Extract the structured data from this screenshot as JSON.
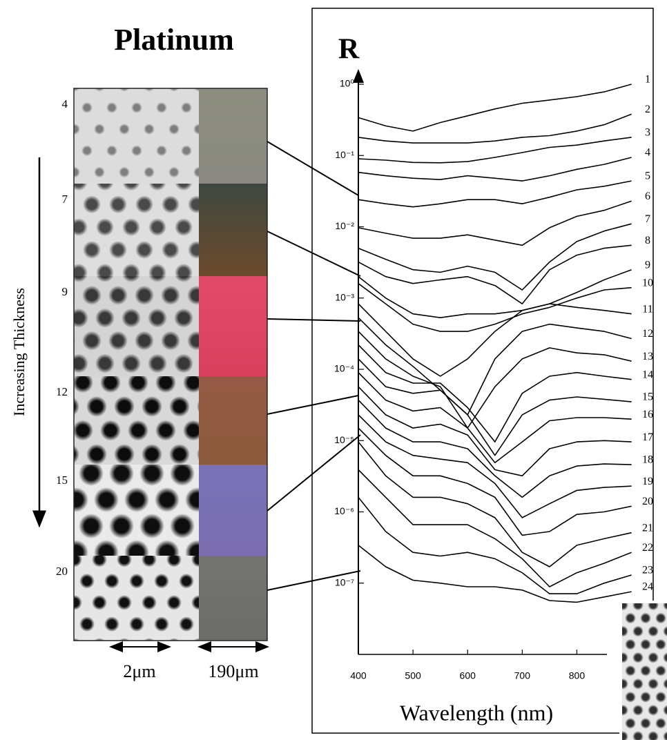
{
  "figure": {
    "title": "Platinum",
    "thickness_label": "Increasing Thickness",
    "samples": [
      "4",
      "7",
      "9",
      "12",
      "15",
      "20"
    ],
    "scale_labels": [
      "2μm",
      "190μm"
    ]
  },
  "chart_data": {
    "type": "line",
    "ylabel": "R",
    "xlabel": "Wavelength (nm)",
    "color": "#000000",
    "yscale": "log",
    "x": [
      400,
      450,
      500,
      550,
      600,
      650,
      700,
      750,
      800,
      850,
      900
    ],
    "xlim": [
      400,
      850
    ],
    "xticks": [
      400,
      500,
      600,
      700,
      800
    ],
    "ylim": [
      1e-08,
      1
    ],
    "yticks": [
      {
        "value": 1,
        "label": "10⁰"
      },
      {
        "value": 0.1,
        "label": "10⁻¹"
      },
      {
        "value": 0.01,
        "label": "10⁻²"
      },
      {
        "value": 0.001,
        "label": "10⁻³"
      },
      {
        "value": 0.0001,
        "label": "10⁻⁴"
      },
      {
        "value": 1e-05,
        "label": "10⁻⁵"
      },
      {
        "value": 1e-06,
        "label": "10⁻⁶"
      },
      {
        "value": 1e-07,
        "label": "10⁻⁷"
      }
    ],
    "series": [
      {
        "name": "1",
        "values": [
          0.34,
          0.26,
          0.22,
          0.29,
          0.36,
          0.45,
          0.54,
          0.6,
          0.67,
          0.78,
          1
        ]
      },
      {
        "name": "2",
        "values": [
          0.18,
          0.16,
          0.15,
          0.15,
          0.15,
          0.16,
          0.18,
          0.19,
          0.22,
          0.27,
          0.38
        ]
      },
      {
        "name": "3",
        "values": [
          0.09,
          0.086,
          0.08,
          0.079,
          0.082,
          0.094,
          0.11,
          0.13,
          0.14,
          0.16,
          0.18
        ]
      },
      {
        "name": "4",
        "values": [
          0.058,
          0.052,
          0.048,
          0.046,
          0.052,
          0.048,
          0.044,
          0.052,
          0.064,
          0.075,
          0.094
        ]
      },
      {
        "name": "5",
        "values": [
          0.024,
          0.021,
          0.019,
          0.021,
          0.024,
          0.024,
          0.021,
          0.026,
          0.033,
          0.037,
          0.044
        ]
      },
      {
        "name": "6",
        "values": [
          0.0097,
          0.0081,
          0.0069,
          0.0069,
          0.0077,
          0.0065,
          0.0055,
          0.0097,
          0.014,
          0.017,
          0.023
        ]
      },
      {
        "name": "7",
        "values": [
          0.005,
          0.0035,
          0.0025,
          0.0023,
          0.0028,
          0.0023,
          0.0013,
          0.0032,
          0.0062,
          0.0087,
          0.011
        ]
      },
      {
        "name": "8",
        "values": [
          0.0032,
          0.002,
          0.0016,
          0.0018,
          0.002,
          0.0015,
          0.00083,
          0.0025,
          0.004,
          0.005,
          0.0055
        ]
      },
      {
        "name": "9",
        "values": [
          0.002,
          0.001,
          0.0006,
          0.00053,
          0.0006,
          0.0006,
          0.00067,
          0.00083,
          0.0012,
          0.0018,
          0.0025
        ]
      },
      {
        "name": "10",
        "values": [
          0.0016,
          0.00083,
          0.00043,
          0.00034,
          0.00034,
          0.00043,
          0.0006,
          0.00074,
          0.001,
          0.0013,
          0.0014
        ]
      },
      {
        "name": "11",
        "values": [
          0.00083,
          0.00034,
          0.00014,
          8e-05,
          0.00014,
          0.00034,
          0.00067,
          0.00083,
          0.00074,
          0.00067,
          0.0006
        ]
      },
      {
        "name": "12",
        "values": [
          0.00053,
          0.00022,
          0.00011,
          5.1e-05,
          2.3e-05,
          0.00014,
          0.00034,
          0.00043,
          0.00038,
          0.00034,
          0.00027
        ]
      },
      {
        "name": "13",
        "values": [
          0.00034,
          0.00014,
          8e-05,
          5.7e-05,
          1.5e-05,
          5.7e-05,
          0.00014,
          0.0002,
          0.00017,
          0.00016,
          0.00013
        ]
      },
      {
        "name": "14",
        "values": [
          0.00022,
          9e-05,
          6.4e-05,
          6.4e-05,
          2.9e-05,
          9.6e-06,
          4.6e-05,
          8e-05,
          9e-05,
          8e-05,
          7.2e-05
        ]
      },
      {
        "name": "15",
        "values": [
          0.00014,
          5.7e-05,
          4.6e-05,
          5.1e-05,
          2.3e-05,
          6.2e-06,
          2.3e-05,
          3.7e-05,
          4.1e-05,
          3.8e-05,
          3.5e-05
        ]
      },
      {
        "name": "16",
        "values": [
          9e-05,
          3.7e-05,
          2.6e-05,
          2.9e-05,
          1.5e-05,
          4.9e-06,
          9.6e-06,
          1.9e-05,
          2.1e-05,
          2.1e-05,
          2e-05
        ]
      },
      {
        "name": "17",
        "values": [
          5.7e-05,
          2.3e-05,
          1.5e-05,
          1.7e-05,
          1.2e-05,
          3.9e-06,
          3.2e-06,
          7.7e-06,
          9.6e-06,
          1e-05,
          9.6e-06
        ]
      },
      {
        "name": "18",
        "values": [
          3.7e-05,
          1.5e-05,
          9.6e-06,
          9.6e-06,
          7.7e-06,
          3.2e-06,
          1.6e-06,
          3.2e-06,
          4.4e-06,
          4.7e-06,
          4.6e-06
        ]
      },
      {
        "name": "19",
        "values": [
          2.3e-05,
          9.6e-06,
          6.2e-06,
          5.5e-06,
          4.9e-06,
          2.5e-06,
          8.3e-07,
          1.3e-06,
          2e-06,
          2.2e-06,
          2.3e-06
        ]
      },
      {
        "name": "20",
        "values": [
          1.5e-05,
          6.2e-06,
          3.2e-06,
          3.2e-06,
          2.5e-06,
          1.6e-06,
          4.7e-07,
          5.3e-07,
          9.2e-07,
          1e-06,
          1.2e-06
        ]
      },
      {
        "name": "21",
        "values": [
          9.6e-06,
          3.2e-06,
          1.6e-06,
          1.6e-06,
          1.3e-06,
          8.3e-07,
          2.7e-07,
          1.7e-07,
          3.4e-07,
          4.2e-07,
          5.1e-07
        ]
      },
      {
        "name": "22",
        "values": [
          3.9e-06,
          1.6e-06,
          6.6e-07,
          6.6e-07,
          6.6e-07,
          4.2e-07,
          2.2e-07,
          8.9e-08,
          1.4e-07,
          1.9e-07,
          2.7e-07
        ]
      },
      {
        "name": "23",
        "values": [
          1.6e-06,
          5.3e-07,
          2.7e-07,
          2.4e-07,
          2.7e-07,
          2.2e-07,
          1.4e-07,
          7.1e-08,
          7.1e-08,
          1e-07,
          1.3e-07
        ]
      },
      {
        "name": "24",
        "values": [
          3.4e-07,
          1.7e-07,
          1.1e-07,
          1e-07,
          8.9e-08,
          8.9e-08,
          8e-08,
          5.7e-08,
          5.4e-08,
          6.4e-08,
          7.6e-08
        ]
      }
    ]
  }
}
